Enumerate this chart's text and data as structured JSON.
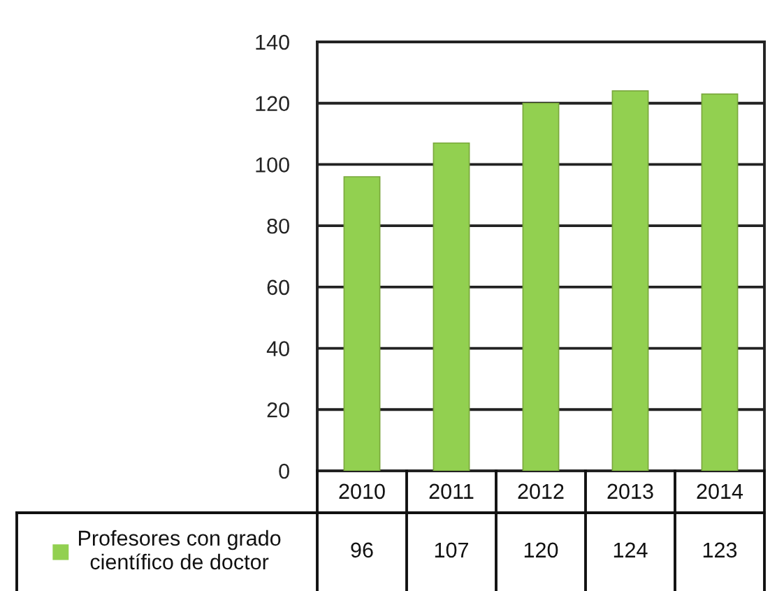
{
  "chart_data": {
    "type": "bar",
    "categories": [
      "2010",
      "2011",
      "2012",
      "2013",
      "2014"
    ],
    "series": [
      {
        "name": "Profesores con grado científico de doctor",
        "color": "#92d050",
        "values": [
          96,
          107,
          120,
          124,
          123
        ]
      }
    ],
    "ylim": [
      0,
      140
    ],
    "yticks": [
      0,
      20,
      40,
      60,
      80,
      100,
      120,
      140
    ],
    "grid": "y",
    "legend": "bottom left",
    "data_labels": true
  }
}
